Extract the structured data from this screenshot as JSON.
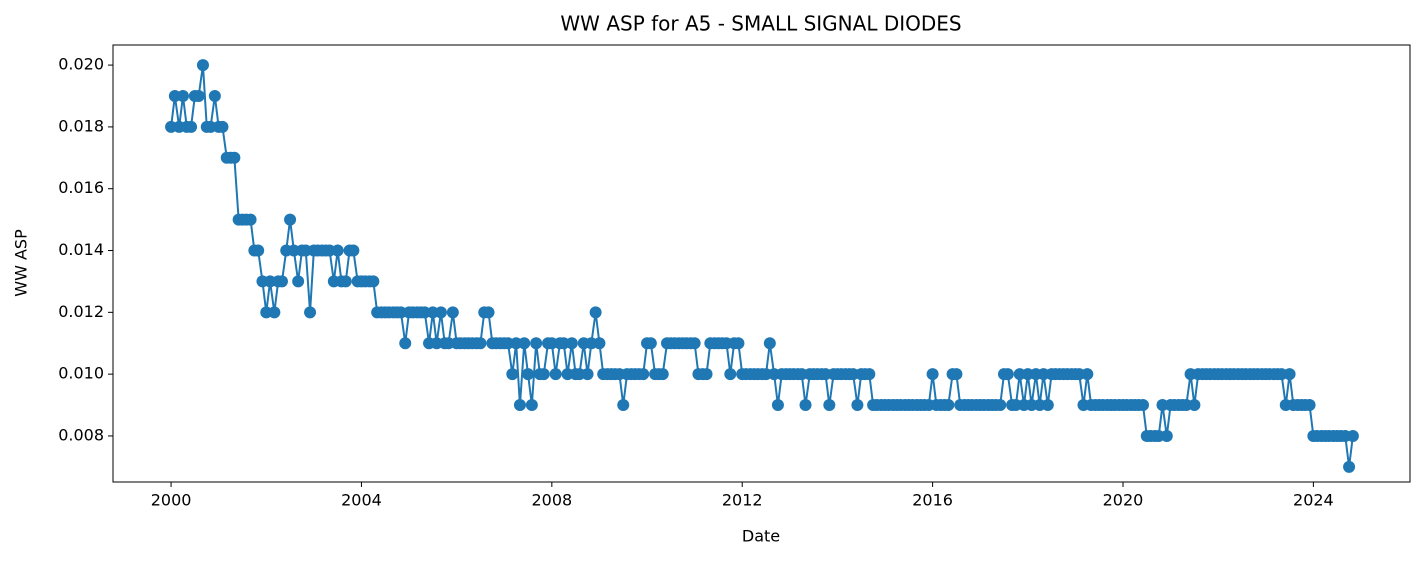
{
  "chart_data": {
    "type": "line",
    "title": "WW ASP for A5 - SMALL SIGNAL DIODES",
    "x_label": "Date",
    "y_label": "WW ASP",
    "xlim": [
      1998.78,
      2026.03
    ],
    "xticks": [
      2000,
      2004,
      2008,
      2012,
      2016,
      2020,
      2024
    ],
    "ylim": [
      0.00651,
      0.02065
    ],
    "yticks": [
      0.008,
      {
        "value": 0.01,
        "label": "0.010"
      },
      0.012,
      0.014,
      0.016,
      0.018,
      {
        "value": 0.02,
        "label": "0.020"
      }
    ],
    "grid": false,
    "series": [
      {
        "name": "WW ASP",
        "color": "#1f77b4",
        "x": [
          2000,
          2000.08,
          2000.17,
          2000.25,
          2000.33,
          2000.42,
          2000.5,
          2000.58,
          2000.67,
          2000.75,
          2000.83,
          2000.92,
          2001,
          2001.08,
          2001.17,
          2001.25,
          2001.33,
          2001.42,
          2001.5,
          2001.58,
          2001.67,
          2001.75,
          2001.83,
          2001.92,
          2002,
          2002.08,
          2002.17,
          2002.25,
          2002.33,
          2002.42,
          2002.5,
          2002.58,
          2002.67,
          2002.75,
          2002.83,
          2002.92,
          2003,
          2003.08,
          2003.17,
          2003.25,
          2003.33,
          2003.42,
          2003.5,
          2003.58,
          2003.67,
          2003.75,
          2003.83,
          2003.92,
          2004,
          2004.08,
          2004.17,
          2004.25,
          2004.33,
          2004.42,
          2004.5,
          2004.58,
          2004.67,
          2004.75,
          2004.83,
          2004.92,
          2005,
          2005.08,
          2005.17,
          2005.25,
          2005.33,
          2005.42,
          2005.5,
          2005.58,
          2005.67,
          2005.75,
          2005.83,
          2005.92,
          2006,
          2006.08,
          2006.17,
          2006.25,
          2006.33,
          2006.42,
          2006.5,
          2006.58,
          2006.67,
          2006.75,
          2006.83,
          2006.92,
          2007,
          2007.08,
          2007.17,
          2007.25,
          2007.33,
          2007.42,
          2007.5,
          2007.58,
          2007.67,
          2007.75,
          2007.83,
          2007.92,
          2008,
          2008.08,
          2008.17,
          2008.25,
          2008.33,
          2008.42,
          2008.5,
          2008.58,
          2008.67,
          2008.75,
          2008.83,
          2008.92,
          2009,
          2009.08,
          2009.17,
          2009.25,
          2009.33,
          2009.42,
          2009.5,
          2009.58,
          2009.67,
          2009.75,
          2009.83,
          2009.92,
          2010,
          2010.08,
          2010.17,
          2010.25,
          2010.33,
          2010.42,
          2010.5,
          2010.58,
          2010.67,
          2010.75,
          2010.83,
          2010.92,
          2011,
          2011.08,
          2011.17,
          2011.25,
          2011.33,
          2011.42,
          2011.5,
          2011.58,
          2011.67,
          2011.75,
          2011.83,
          2011.92,
          2012,
          2012.08,
          2012.17,
          2012.25,
          2012.33,
          2012.42,
          2012.5,
          2012.58,
          2012.67,
          2012.75,
          2012.83,
          2012.92,
          2013,
          2013.08,
          2013.17,
          2013.25,
          2013.33,
          2013.42,
          2013.5,
          2013.58,
          2013.67,
          2013.75,
          2013.83,
          2013.92,
          2014,
          2014.08,
          2014.17,
          2014.25,
          2014.33,
          2014.42,
          2014.5,
          2014.58,
          2014.67,
          2014.75,
          2014.83,
          2014.92,
          2015,
          2015.08,
          2015.17,
          2015.25,
          2015.33,
          2015.42,
          2015.5,
          2015.58,
          2015.67,
          2015.75,
          2015.83,
          2015.92,
          2016,
          2016.08,
          2016.17,
          2016.25,
          2016.33,
          2016.42,
          2016.5,
          2016.58,
          2016.67,
          2016.75,
          2016.83,
          2016.92,
          2017,
          2017.08,
          2017.17,
          2017.25,
          2017.33,
          2017.42,
          2017.5,
          2017.58,
          2017.67,
          2017.75,
          2017.83,
          2017.92,
          2018,
          2018.08,
          2018.17,
          2018.25,
          2018.33,
          2018.42,
          2018.5,
          2018.58,
          2018.67,
          2018.75,
          2018.83,
          2018.92,
          2019,
          2019.08,
          2019.17,
          2019.25,
          2019.33,
          2019.42,
          2019.5,
          2019.58,
          2019.67,
          2019.75,
          2019.83,
          2019.92,
          2020,
          2020.08,
          2020.17,
          2020.25,
          2020.33,
          2020.42,
          2020.5,
          2020.58,
          2020.67,
          2020.75,
          2020.83,
          2020.92,
          2021,
          2021.08,
          2021.17,
          2021.25,
          2021.33,
          2021.42,
          2021.5,
          2021.58,
          2021.67,
          2021.75,
          2021.83,
          2021.92,
          2022,
          2022.08,
          2022.17,
          2022.25,
          2022.33,
          2022.42,
          2022.5,
          2022.58,
          2022.67,
          2022.75,
          2022.83,
          2022.92,
          2023,
          2023.08,
          2023.17,
          2023.25,
          2023.33,
          2023.42,
          2023.5,
          2023.58,
          2023.67,
          2023.75,
          2023.83,
          2023.92,
          2024,
          2024.08,
          2024.17,
          2024.25,
          2024.33,
          2024.42,
          2024.5,
          2024.58,
          2024.67,
          2024.75,
          2024.83
        ],
        "values": [
          0.018,
          0.019,
          0.018,
          0.019,
          0.018,
          0.018,
          0.019,
          0.019,
          0.02,
          0.018,
          0.018,
          0.019,
          0.018,
          0.018,
          0.017,
          0.017,
          0.017,
          0.015,
          0.015,
          0.015,
          0.015,
          0.014,
          0.014,
          0.013,
          0.012,
          0.013,
          0.012,
          0.013,
          0.013,
          0.014,
          0.015,
          0.014,
          0.013,
          0.014,
          0.014,
          0.012,
          0.014,
          0.014,
          0.014,
          0.014,
          0.014,
          0.013,
          0.014,
          0.013,
          0.013,
          0.014,
          0.014,
          0.013,
          0.013,
          0.013,
          0.013,
          0.013,
          0.012,
          0.012,
          0.012,
          0.012,
          0.012,
          0.012,
          0.012,
          0.011,
          0.012,
          0.012,
          0.012,
          0.012,
          0.012,
          0.011,
          0.012,
          0.011,
          0.012,
          0.011,
          0.011,
          0.012,
          0.011,
          0.011,
          0.011,
          0.011,
          0.011,
          0.011,
          0.011,
          0.012,
          0.012,
          0.011,
          0.011,
          0.011,
          0.011,
          0.011,
          0.01,
          0.011,
          0.009,
          0.011,
          0.01,
          0.009,
          0.011,
          0.01,
          0.01,
          0.011,
          0.011,
          0.01,
          0.011,
          0.011,
          0.01,
          0.011,
          0.01,
          0.01,
          0.011,
          0.01,
          0.011,
          0.012,
          0.011,
          0.01,
          0.01,
          0.01,
          0.01,
          0.01,
          0.009,
          0.01,
          0.01,
          0.01,
          0.01,
          0.01,
          0.011,
          0.011,
          0.01,
          0.01,
          0.01,
          0.011,
          0.011,
          0.011,
          0.011,
          0.011,
          0.011,
          0.011,
          0.011,
          0.01,
          0.01,
          0.01,
          0.011,
          0.011,
          0.011,
          0.011,
          0.011,
          0.01,
          0.011,
          0.011,
          0.01,
          0.01,
          0.01,
          0.01,
          0.01,
          0.01,
          0.01,
          0.011,
          0.01,
          0.009,
          0.01,
          0.01,
          0.01,
          0.01,
          0.01,
          0.01,
          0.009,
          0.01,
          0.01,
          0.01,
          0.01,
          0.01,
          0.009,
          0.01,
          0.01,
          0.01,
          0.01,
          0.01,
          0.01,
          0.009,
          0.01,
          0.01,
          0.01,
          0.009,
          0.009,
          0.009,
          0.009,
          0.009,
          0.009,
          0.009,
          0.009,
          0.009,
          0.009,
          0.009,
          0.009,
          0.009,
          0.009,
          0.009,
          0.01,
          0.009,
          0.009,
          0.009,
          0.009,
          0.01,
          0.01,
          0.009,
          0.009,
          0.009,
          0.009,
          0.009,
          0.009,
          0.009,
          0.009,
          0.009,
          0.009,
          0.009,
          0.01,
          0.01,
          0.009,
          0.009,
          0.01,
          0.009,
          0.01,
          0.009,
          0.01,
          0.009,
          0.01,
          0.009,
          0.01,
          0.01,
          0.01,
          0.01,
          0.01,
          0.01,
          0.01,
          0.01,
          0.009,
          0.01,
          0.009,
          0.009,
          0.009,
          0.009,
          0.009,
          0.009,
          0.009,
          0.009,
          0.009,
          0.009,
          0.009,
          0.009,
          0.009,
          0.009,
          0.008,
          0.008,
          0.008,
          0.008,
          0.009,
          0.008,
          0.009,
          0.009,
          0.009,
          0.009,
          0.009,
          0.01,
          0.009,
          0.01,
          0.01,
          0.01,
          0.01,
          0.01,
          0.01,
          0.01,
          0.01,
          0.01,
          0.01,
          0.01,
          0.01,
          0.01,
          0.01,
          0.01,
          0.01,
          0.01,
          0.01,
          0.01,
          0.01,
          0.01,
          0.01,
          0.009,
          0.01,
          0.009,
          0.009,
          0.009,
          0.009,
          0.009,
          0.008,
          0.008,
          0.008,
          0.008,
          0.008,
          0.008,
          0.008,
          0.008,
          0.008,
          0.007,
          0.008
        ]
      }
    ]
  }
}
